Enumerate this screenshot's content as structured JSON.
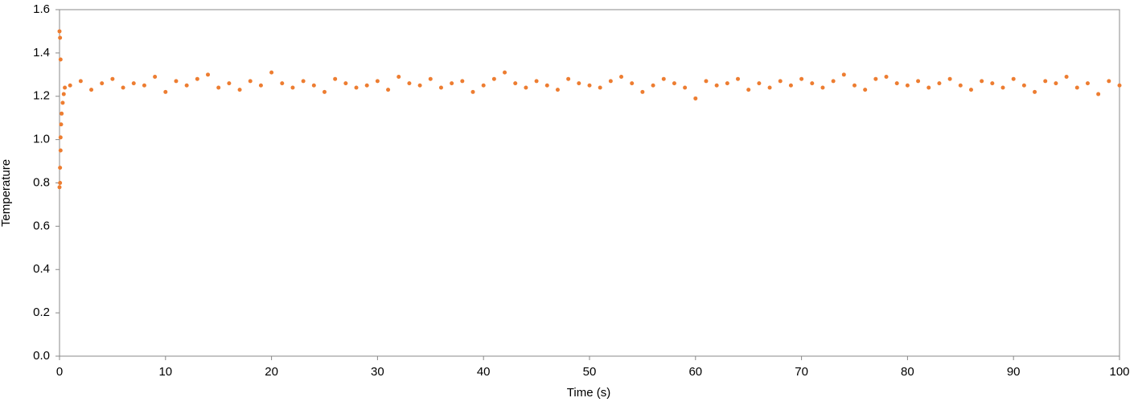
{
  "chart_data": {
    "type": "scatter",
    "xlabel": "Time (s)",
    "ylabel": "Temperature",
    "color": "#ed7d31",
    "x": [
      0,
      0,
      0.05,
      0.05,
      0.05,
      0.1,
      0.1,
      0.1,
      0.15,
      0.2,
      0.3,
      0.4,
      0.5,
      1,
      2,
      3,
      4,
      5,
      6,
      7,
      8,
      9,
      10,
      11,
      12,
      13,
      14,
      15,
      16,
      17,
      18,
      19,
      20,
      21,
      22,
      23,
      24,
      25,
      26,
      27,
      28,
      29,
      30,
      31,
      32,
      33,
      34,
      35,
      36,
      37,
      38,
      39,
      40,
      41,
      42,
      43,
      44,
      45,
      46,
      47,
      48,
      49,
      50,
      51,
      52,
      53,
      54,
      55,
      56,
      57,
      58,
      59,
      60,
      61,
      62,
      63,
      64,
      65,
      66,
      67,
      68,
      69,
      70,
      71,
      72,
      73,
      74,
      75,
      76,
      77,
      78,
      79,
      80,
      81,
      82,
      83,
      84,
      85,
      86,
      87,
      88,
      89,
      90,
      91,
      92,
      93,
      94,
      95,
      96,
      97,
      98,
      99,
      100
    ],
    "values": [
      0.78,
      1.5,
      1.47,
      0.8,
      0.87,
      0.95,
      1.37,
      1.01,
      1.07,
      1.12,
      1.17,
      1.21,
      1.24,
      1.25,
      1.27,
      1.23,
      1.26,
      1.28,
      1.24,
      1.26,
      1.25,
      1.29,
      1.22,
      1.27,
      1.25,
      1.28,
      1.3,
      1.24,
      1.26,
      1.23,
      1.27,
      1.25,
      1.31,
      1.26,
      1.24,
      1.27,
      1.25,
      1.22,
      1.28,
      1.26,
      1.24,
      1.25,
      1.27,
      1.23,
      1.29,
      1.26,
      1.25,
      1.28,
      1.24,
      1.26,
      1.27,
      1.22,
      1.25,
      1.28,
      1.31,
      1.26,
      1.24,
      1.27,
      1.25,
      1.23,
      1.28,
      1.26,
      1.25,
      1.24,
      1.27,
      1.29,
      1.26,
      1.22,
      1.25,
      1.28,
      1.26,
      1.24,
      1.19,
      1.27,
      1.25,
      1.26,
      1.28,
      1.23,
      1.26,
      1.24,
      1.27,
      1.25,
      1.28,
      1.26,
      1.24,
      1.27,
      1.3,
      1.25,
      1.23,
      1.28,
      1.29,
      1.26,
      1.25,
      1.27,
      1.24,
      1.26,
      1.28,
      1.25,
      1.23,
      1.27,
      1.26,
      1.24,
      1.28,
      1.25,
      1.22,
      1.27,
      1.26,
      1.29,
      1.24,
      1.26,
      1.21,
      1.27,
      1.25
    ],
    "xlim": [
      0,
      100
    ],
    "xticks": [
      0,
      10,
      20,
      30,
      40,
      50,
      60,
      70,
      80,
      90,
      100
    ],
    "ylim": [
      0,
      1.6
    ],
    "yticks": [
      {
        "value": 0,
        "label": "0.0"
      },
      0.2,
      0.4,
      0.6,
      0.8,
      {
        "value": 1,
        "label": "1.0"
      },
      1.2,
      1.4,
      1.6
    ],
    "grid": false
  }
}
